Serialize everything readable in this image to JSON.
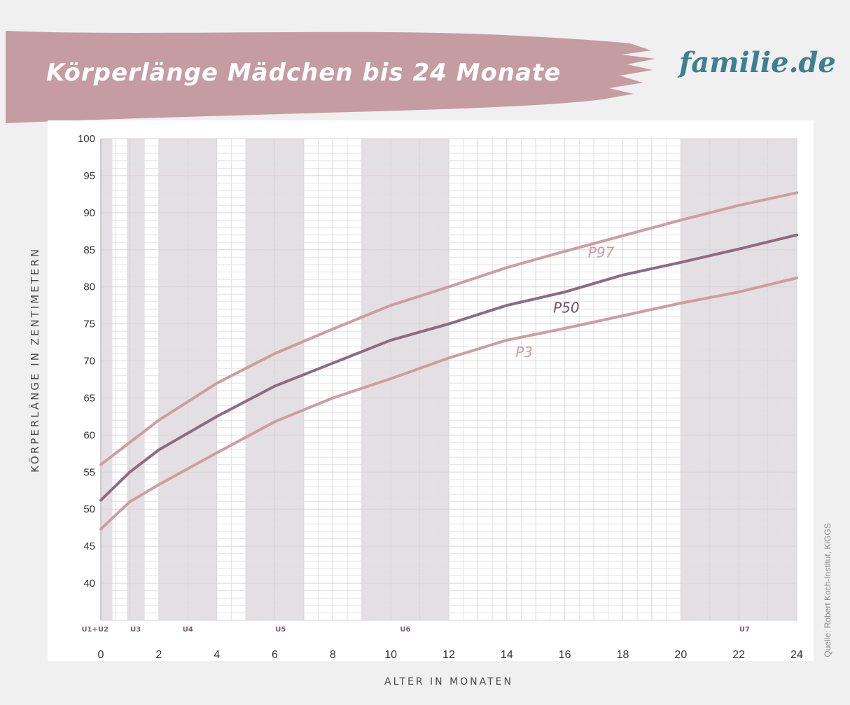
{
  "header": {
    "title": "Körperlänge Mädchen bis 24 Monate",
    "brand": "familie.de"
  },
  "source": "Quelle: Robert Koch-Institut, KiGGS",
  "colors": {
    "banner": "#c49ca2",
    "p50": "#8e6c80",
    "p_outer": "#cc9ea3",
    "band": "#e4dfe3",
    "plot_bg": "#ffffff",
    "grid": "#e2e2e2",
    "exam_label": "#7d5c72"
  },
  "chart_data": {
    "type": "line",
    "title": "Körperlänge Mädchen bis 24 Monate",
    "xlabel": "ALTER IN MONATEN",
    "ylabel": "KÖRPERLÄNGE IN ZENTIMETERN",
    "xlim": [
      0,
      24
    ],
    "ylim": [
      35,
      100
    ],
    "x_ticks": [
      0,
      2,
      4,
      6,
      8,
      10,
      12,
      14,
      16,
      18,
      20,
      22,
      24
    ],
    "y_ticks": [
      40,
      45,
      50,
      55,
      60,
      65,
      70,
      75,
      80,
      85,
      90,
      95,
      100
    ],
    "grid": true,
    "series": [
      {
        "name": "P97",
        "x": [
          0,
          1,
          2,
          4,
          6,
          8,
          10,
          12,
          14,
          16,
          18,
          20,
          22,
          24
        ],
        "values": [
          56,
          59,
          62,
          67,
          71,
          74.3,
          77.5,
          80,
          82.6,
          84.8,
          86.9,
          89,
          91,
          92.7
        ]
      },
      {
        "name": "P50",
        "x": [
          0,
          1,
          2,
          4,
          6,
          8,
          10,
          12,
          14,
          16,
          18,
          20,
          22,
          24
        ],
        "values": [
          51.2,
          55,
          58,
          62.5,
          66.6,
          69.7,
          72.8,
          75,
          77.5,
          79.3,
          81.6,
          83.3,
          85.1,
          87
        ]
      },
      {
        "name": "P3",
        "x": [
          0,
          1,
          2,
          4,
          6,
          8,
          10,
          12,
          14,
          16,
          18,
          20,
          22,
          24
        ],
        "values": [
          47.3,
          51,
          53.3,
          57.6,
          61.8,
          65,
          67.6,
          70.4,
          72.8,
          74.4,
          76.1,
          77.8,
          79.3,
          81.2
        ]
      }
    ],
    "series_labels": [
      {
        "text": "P97",
        "x": 16.8,
        "y": 84
      },
      {
        "text": "P50",
        "x": 15.6,
        "y": 76.5
      },
      {
        "text": "P3",
        "x": 14.3,
        "y": 70.5
      }
    ],
    "exam_periods": [
      {
        "label": "U1+U2",
        "from": 0,
        "to": 0.4,
        "label_x": -0.2
      },
      {
        "label": "U3",
        "from": 0.9,
        "to": 1.5,
        "label_x": 1.2
      },
      {
        "label": "U4",
        "from": 2,
        "to": 4,
        "label_x": 3
      },
      {
        "label": "U5",
        "from": 5,
        "to": 7,
        "label_x": 6.2
      },
      {
        "label": "U6",
        "from": 9,
        "to": 12,
        "label_x": 10.5
      },
      {
        "label": "U7",
        "from": 20,
        "to": 24,
        "label_x": 22.2
      }
    ]
  }
}
